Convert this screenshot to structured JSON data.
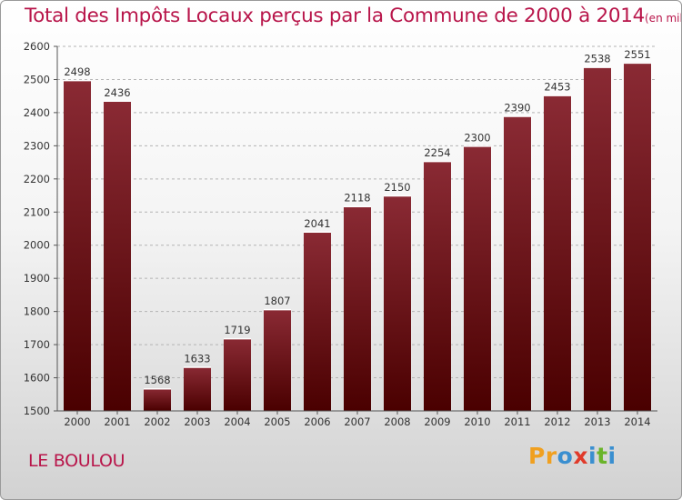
{
  "title": "Total des Impôts Locaux perçus par la Commune de 2000 à 2014",
  "title_unit": "(en milliers d'€)",
  "commune": "LE BOULOU",
  "logo": {
    "text": "Proxiti",
    "letters": [
      {
        "ch": "P",
        "color": "#f0a020"
      },
      {
        "ch": "r",
        "color": "#f0a020"
      },
      {
        "ch": "o",
        "color": "#3a8fd0"
      },
      {
        "ch": "x",
        "color": "#e03a2a"
      },
      {
        "ch": "i",
        "color": "#3a8fd0"
      },
      {
        "ch": "t",
        "color": "#6ab42a"
      },
      {
        "ch": "i",
        "color": "#3a8fd0"
      }
    ]
  },
  "colors": {
    "accent": "#b8154a",
    "bar_top": "#8a2a34",
    "bar_bottom": "#4a0000"
  },
  "chart_data": {
    "type": "bar",
    "categories": [
      "2000",
      "2001",
      "2002",
      "2003",
      "2004",
      "2005",
      "2006",
      "2007",
      "2008",
      "2009",
      "2010",
      "2011",
      "2012",
      "2013",
      "2014"
    ],
    "values": [
      2498,
      2436,
      1568,
      1633,
      1719,
      1807,
      2041,
      2118,
      2150,
      2254,
      2300,
      2390,
      2453,
      2538,
      2551
    ],
    "title": "Total des Impôts Locaux perçus par la Commune de 2000 à 2014",
    "xlabel": "",
    "ylabel": "",
    "ylim": [
      1500,
      2600
    ],
    "yticks": [
      1500,
      1600,
      1700,
      1800,
      1900,
      2000,
      2100,
      2200,
      2300,
      2400,
      2500,
      2600
    ],
    "grid": true,
    "data_labels": true
  }
}
